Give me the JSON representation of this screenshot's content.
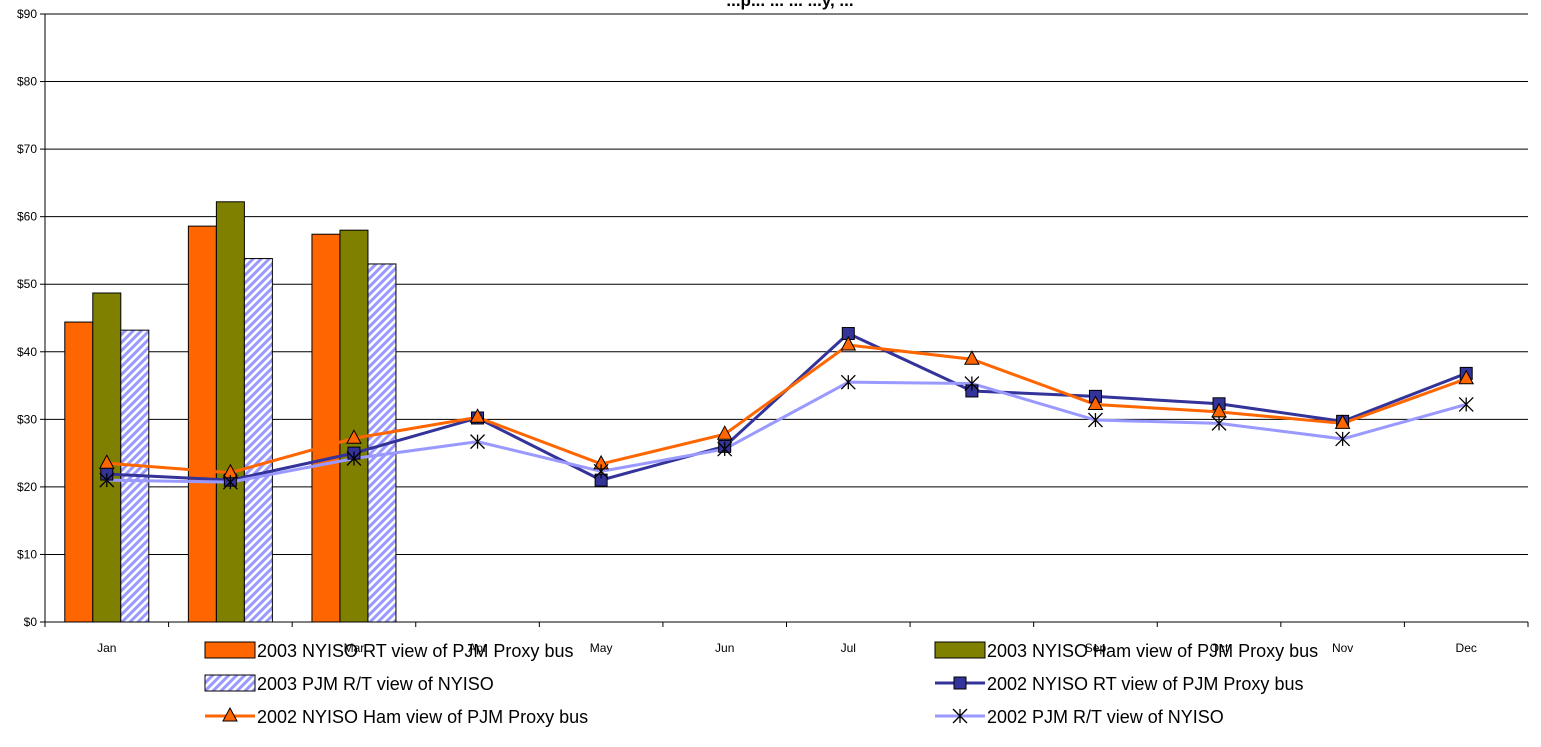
{
  "chart_data": {
    "type": "bar",
    "title": "...p... ... ... ...y, ...",
    "xlabel": "",
    "ylabel": "",
    "ylim": [
      0,
      90
    ],
    "ytick_step": 10,
    "yticks": [
      "$0",
      "$10",
      "$20",
      "$30",
      "$40",
      "$50",
      "$60",
      "$70",
      "$80",
      "$90"
    ],
    "categories": [
      "Jan",
      "Feb",
      "Mar",
      "Apr",
      "May",
      "Jun",
      "Jul",
      "Aug",
      "Sep",
      "Oct",
      "Nov",
      "Dec"
    ],
    "grid": "horizontal",
    "legend_position": "bottom",
    "bar_series": [
      {
        "name": "2003 NYISO RT view of PJM Proxy bus",
        "color": "#ff6600",
        "pattern": "solid",
        "values": [
          44.4,
          58.6,
          57.4
        ]
      },
      {
        "name": "2003 NYISO Ham view of PJM Proxy bus",
        "color": "#808000",
        "pattern": "solid",
        "values": [
          48.7,
          62.2,
          58.0
        ]
      },
      {
        "name": "2003 PJM R/T view of NYISO",
        "color": "#9999ff",
        "pattern": "diagonal-stripe",
        "values": [
          43.2,
          53.8,
          53.0
        ]
      }
    ],
    "line_series": [
      {
        "name": "2002 NYISO RT view of PJM Proxy bus",
        "color": "#333399",
        "marker": "square",
        "values": [
          21.9,
          21.0,
          25.0,
          30.2,
          21.0,
          26.0,
          42.7,
          34.2,
          33.4,
          32.3,
          29.7,
          36.8
        ]
      },
      {
        "name": "2002 NYISO Ham view of PJM Proxy bus",
        "color": "#ff6600",
        "marker": "triangle",
        "values": [
          23.5,
          22.1,
          27.2,
          30.3,
          23.4,
          27.8,
          41.0,
          38.9,
          32.2,
          31.1,
          29.4,
          36.0
        ]
      },
      {
        "name": "2002 PJM R/T view of NYISO",
        "color": "#9999ff",
        "marker": "asterisk",
        "values": [
          21.0,
          20.7,
          24.2,
          26.7,
          22.3,
          25.6,
          35.5,
          35.3,
          29.9,
          29.4,
          27.1,
          32.2
        ]
      }
    ]
  }
}
